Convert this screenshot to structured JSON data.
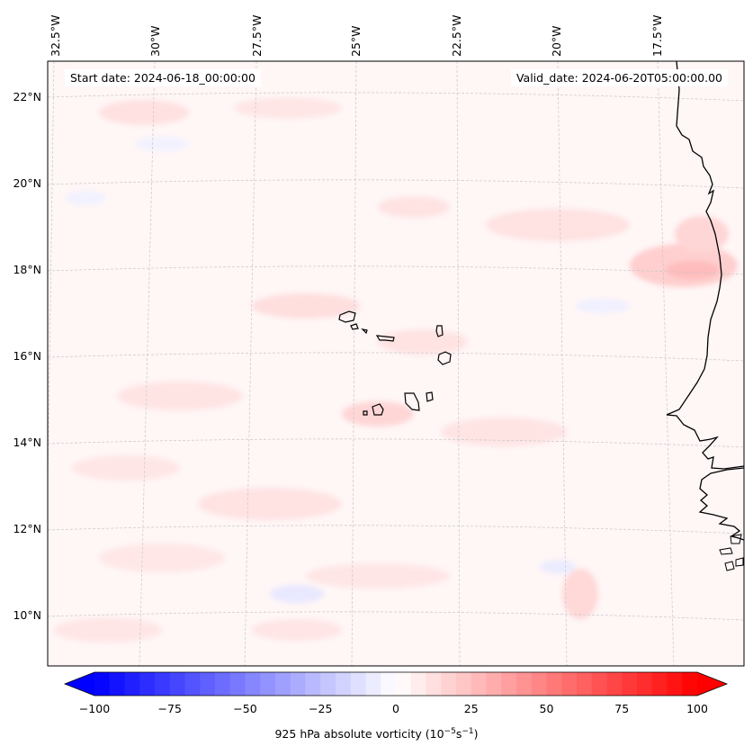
{
  "map": {
    "start_label": "Start date: 2024-06-18_00:00:00",
    "valid_label": "Valid_date: 2024-06-20T05:00:00.00",
    "lon_labels": [
      "32.5°W",
      "30°W",
      "27.5°W",
      "25°W",
      "22.5°W",
      "20°W",
      "17.5°W"
    ],
    "lat_labels": [
      "22°N",
      "20°N",
      "18°N",
      "16°N",
      "14°N",
      "12°N",
      "10°N"
    ],
    "colorbar": {
      "min": -100,
      "max": 100,
      "extend": "both",
      "ticks": [
        "−100",
        "−75",
        "−50",
        "−25",
        "0",
        "25",
        "50",
        "75",
        "100"
      ],
      "label_prefix": "925 hPa absolute vorticity (10",
      "label_exp1": "−5",
      "label_mid": "s",
      "label_exp2": "−1",
      "label_suffix": ")"
    },
    "colors": {
      "negative": "#0000ff",
      "zero": "#ffffff",
      "positive": "#ff0000",
      "coastline": "#000000",
      "gridline": "#c8c8c8"
    }
  }
}
